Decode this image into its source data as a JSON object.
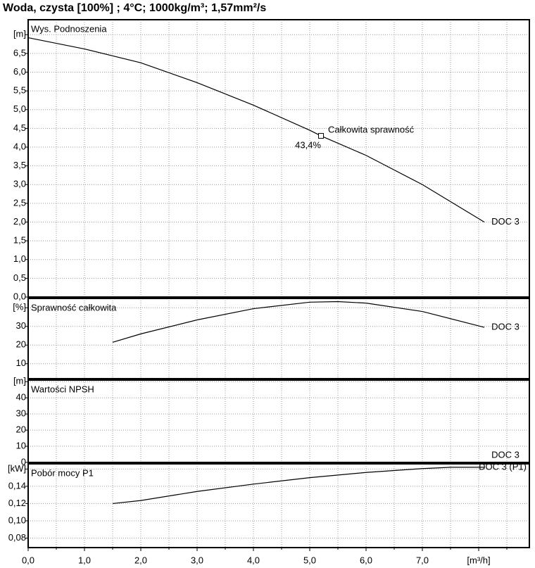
{
  "title": "Woda, czysta [100%] ; 4°C; 1000kg/m³; 1,57mm²/s",
  "x_axis": {
    "xlim": [
      0,
      8.9
    ],
    "xticks": [
      {
        "value": 0,
        "label": "0,0"
      },
      {
        "value": 1,
        "label": "1,0"
      },
      {
        "value": 2,
        "label": "2,0"
      },
      {
        "value": 3,
        "label": "3,0"
      },
      {
        "value": 4,
        "label": "4,0"
      },
      {
        "value": 5,
        "label": "5,0"
      },
      {
        "value": 6,
        "label": "6,0"
      },
      {
        "value": 7,
        "label": "7,0"
      },
      {
        "value": 8,
        "label": "[m³/h]"
      }
    ],
    "xminor": [
      0.5,
      1.5,
      2.5,
      3.5,
      4.5,
      5.5,
      6.5,
      7.5,
      8.5
    ]
  },
  "chart_data": [
    {
      "type": "line",
      "title": "Wys. Podnoszenia",
      "ylim": [
        0,
        7.4
      ],
      "grid": true,
      "yticks": [
        {
          "value": 0,
          "label": "0,0"
        },
        {
          "value": 0.5,
          "label": "0,5"
        },
        {
          "value": 1,
          "label": "1,0"
        },
        {
          "value": 1.5,
          "label": "1,5"
        },
        {
          "value": 2,
          "label": "2,0"
        },
        {
          "value": 2.5,
          "label": "2,5"
        },
        {
          "value": 3,
          "label": "3,0"
        },
        {
          "value": 3.5,
          "label": "3,5"
        },
        {
          "value": 4,
          "label": "4,0"
        },
        {
          "value": 4.5,
          "label": "4,5"
        },
        {
          "value": 5,
          "label": "5,0"
        },
        {
          "value": 5.5,
          "label": "5,5"
        },
        {
          "value": 6,
          "label": "6,0"
        },
        {
          "value": 6.5,
          "label": "6,5"
        },
        {
          "value": 7,
          "label": "[m]"
        }
      ],
      "series": [
        {
          "name": "DOC 3",
          "color": "#000000",
          "x": [
            0,
            1,
            2,
            3,
            4,
            5,
            5.2,
            6,
            7,
            8.1
          ],
          "values": [
            6.92,
            6.62,
            6.25,
            5.72,
            5.12,
            4.45,
            4.3,
            3.78,
            3.0,
            2.0
          ]
        }
      ],
      "annotations": [
        {
          "x": 5.2,
          "y": 4.3,
          "text": "Całkowita sprawność",
          "value": 43.4,
          "label": "43,4%"
        }
      ]
    },
    {
      "type": "line",
      "title": "Sprawność całkowita",
      "ylim": [
        2,
        45
      ],
      "grid": true,
      "yticks": [
        10,
        20,
        30,
        {
          "value": 40,
          "label": "[%]"
        }
      ],
      "series": [
        {
          "name": "DOC 3",
          "color": "#000000",
          "x": [
            1.5,
            2,
            3,
            4,
            5,
            5.5,
            6,
            7,
            8.1
          ],
          "values": [
            21.5,
            26,
            33.5,
            39.5,
            43,
            43.3,
            42.5,
            38,
            29.5
          ]
        }
      ]
    },
    {
      "type": "line",
      "title": "Wartości NPSH",
      "ylim": [
        0,
        51
      ],
      "grid": true,
      "yticks": [
        0,
        10,
        20,
        30,
        40,
        {
          "value": 50,
          "label": "[m]"
        }
      ],
      "series": [
        {
          "name": "DOC 3",
          "color": "#000000",
          "x": [],
          "values": []
        }
      ]
    },
    {
      "type": "line",
      "title": "Pobór mocy P1",
      "ylim": [
        0.069,
        0.166
      ],
      "grid": true,
      "yticks": [
        {
          "value": 0.08,
          "label": "0,08"
        },
        {
          "value": 0.1,
          "label": "0,10"
        },
        {
          "value": 0.12,
          "label": "0,12"
        },
        {
          "value": 0.14,
          "label": "0,14"
        },
        {
          "value": 0.16,
          "label": "[kW]"
        }
      ],
      "series": [
        {
          "name": "DOC 3 (P1)",
          "color": "#000000",
          "x": [
            1.5,
            2,
            3,
            4,
            5,
            6,
            7,
            7.5,
            8.1
          ],
          "values": [
            0.12,
            0.1235,
            0.134,
            0.1425,
            0.15,
            0.156,
            0.1605,
            0.162,
            0.162
          ]
        }
      ]
    }
  ]
}
